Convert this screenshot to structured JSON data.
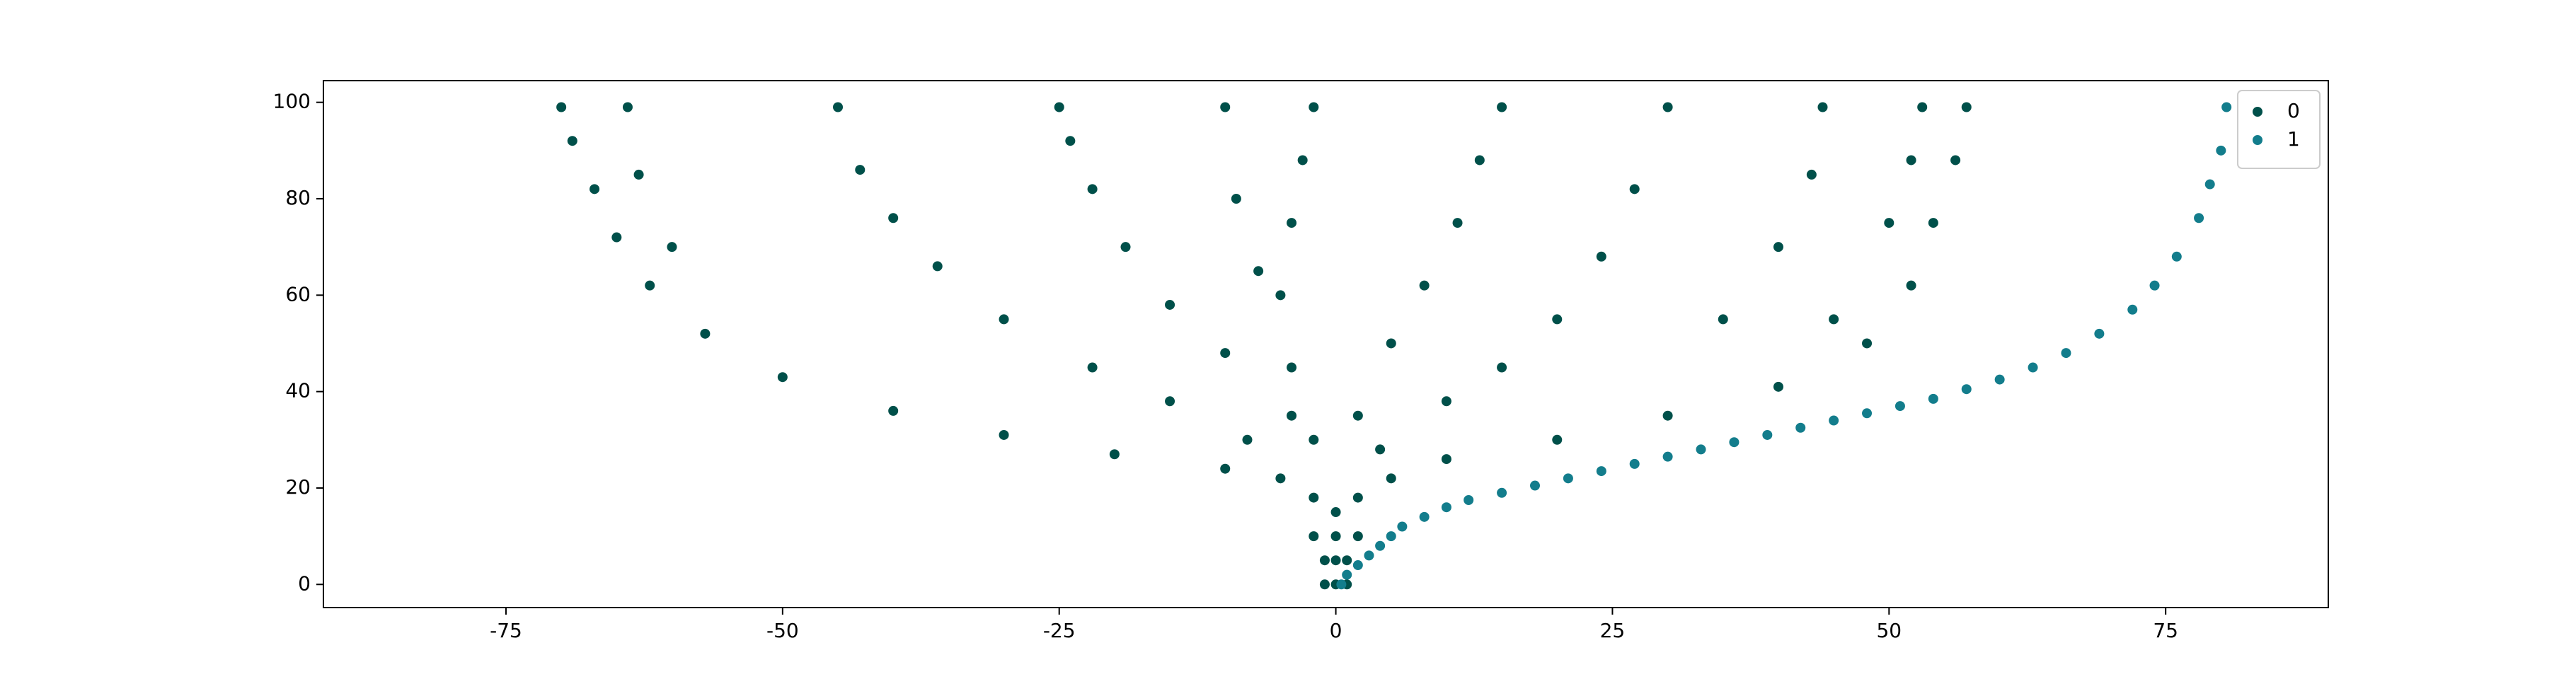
{
  "chart_data": {
    "type": "scatter",
    "xlim": [
      -91.5,
      89.7
    ],
    "ylim": [
      -4.8,
      104.5
    ],
    "xticks": [
      -75,
      -50,
      -25,
      0,
      25,
      50,
      75
    ],
    "yticks": [
      0,
      20,
      40,
      60,
      80,
      100
    ],
    "legend": "upper right",
    "series": [
      {
        "name": "0",
        "color": "#00504a",
        "x": [
          0,
          -1,
          1,
          0,
          -1,
          1,
          0,
          -2,
          2,
          0,
          -2,
          2,
          -5,
          -10,
          -20,
          -30,
          -40,
          -50,
          -57,
          -62,
          -65,
          -67,
          -69,
          -70,
          -8,
          -15,
          -22,
          -30,
          -36,
          -40,
          -43,
          -45,
          -4,
          -10,
          -15,
          -19,
          -22,
          -24,
          -25,
          -2,
          -4,
          -5,
          -4,
          -3,
          -2,
          -7,
          -9,
          -10,
          5,
          10,
          20,
          30,
          40,
          48,
          52,
          54,
          56,
          57,
          4,
          10,
          15,
          20,
          24,
          27,
          30,
          2,
          5,
          8,
          11,
          13,
          15,
          45,
          50,
          52,
          53,
          35,
          40,
          43,
          44,
          -60,
          -63,
          -64
        ],
        "y": [
          0,
          0,
          0,
          5,
          5,
          5,
          10,
          10,
          10,
          15,
          18,
          18,
          22,
          24,
          27,
          31,
          36,
          43,
          52,
          62,
          72,
          82,
          92,
          99,
          30,
          38,
          45,
          55,
          66,
          76,
          86,
          99,
          35,
          48,
          58,
          70,
          82,
          92,
          99,
          30,
          45,
          60,
          75,
          88,
          99,
          65,
          80,
          99,
          22,
          26,
          30,
          35,
          41,
          50,
          62,
          75,
          88,
          99,
          28,
          38,
          45,
          55,
          68,
          82,
          99,
          35,
          50,
          62,
          75,
          88,
          99,
          55,
          75,
          88,
          99,
          55,
          70,
          85,
          99,
          70,
          85,
          99
        ]
      },
      {
        "name": "1",
        "color": "#137d8c",
        "x": [
          0.5,
          1,
          2,
          3,
          4,
          5,
          6,
          8,
          10,
          12,
          15,
          18,
          21,
          24,
          27,
          30,
          33,
          36,
          39,
          42,
          45,
          48,
          51,
          54,
          57,
          60,
          63,
          66,
          69,
          72,
          74,
          76,
          78,
          79,
          80,
          80.5
        ],
        "y": [
          0,
          2,
          4,
          6,
          8,
          10,
          12,
          14,
          16,
          17.5,
          19,
          20.5,
          22,
          23.5,
          25,
          26.5,
          28,
          29.5,
          31,
          32.5,
          34,
          35.5,
          37,
          38.5,
          40.5,
          42.5,
          45,
          48,
          52,
          57,
          62,
          68,
          76,
          83,
          90,
          99
        ]
      }
    ]
  }
}
